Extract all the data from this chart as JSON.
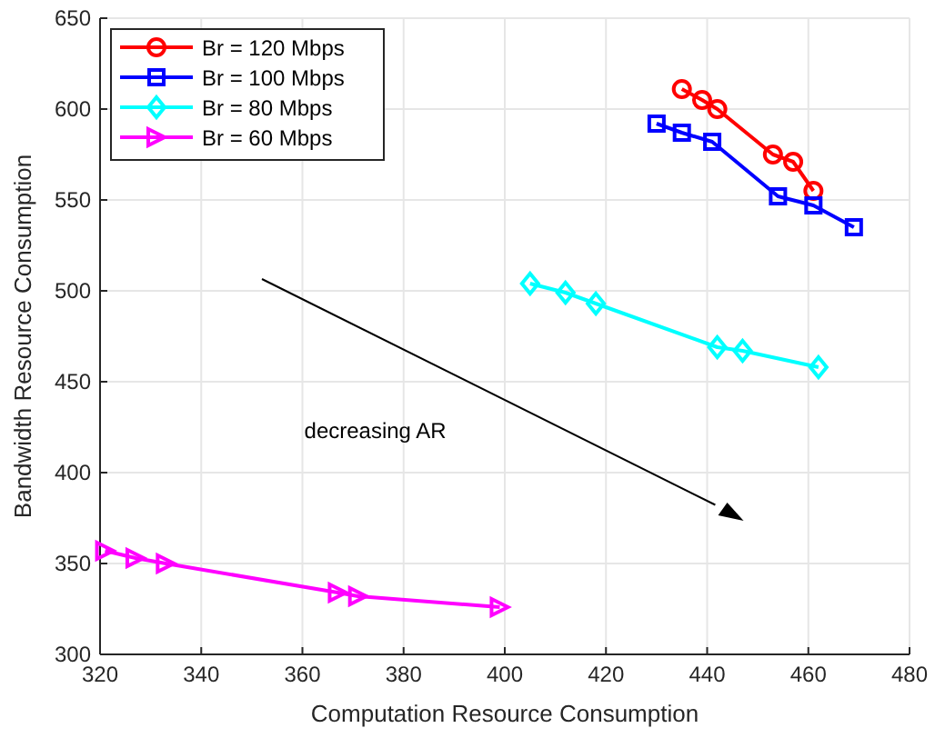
{
  "chart_data": {
    "type": "line",
    "xlabel": "Computation Resource Consumption",
    "ylabel": "Bandwidth Resource Consumption",
    "xlim": [
      320,
      480
    ],
    "xticks": [
      320,
      340,
      360,
      380,
      400,
      420,
      440,
      460,
      480
    ],
    "ylim": [
      300,
      650
    ],
    "yticks": [
      300,
      350,
      400,
      450,
      500,
      550,
      600,
      650
    ],
    "grid": true,
    "legend": "top left",
    "annotations": [
      "decreasing AR"
    ],
    "series": [
      {
        "name": "Br = 120 Mbps",
        "color": "#ff0000",
        "marker": "circle",
        "x": [
          435,
          439,
          442,
          453,
          457,
          461
        ],
        "values": [
          611,
          605,
          600,
          575,
          571,
          555
        ]
      },
      {
        "name": "Br = 100 Mbps",
        "color": "#0000ff",
        "marker": "square",
        "x": [
          430,
          435,
          441,
          454,
          461,
          469
        ],
        "values": [
          592,
          587,
          582,
          552,
          547,
          535
        ]
      },
      {
        "name": "Br = 80 Mbps",
        "color": "#00ffff",
        "marker": "diamond",
        "x": [
          405,
          412,
          418,
          442,
          447,
          462
        ],
        "values": [
          504,
          499,
          493,
          469,
          467,
          458
        ]
      },
      {
        "name": "Br = 60 Mbps",
        "color": "#ff00ff",
        "marker": "triangle",
        "x": [
          321,
          327,
          333,
          367,
          371,
          399
        ],
        "values": [
          357,
          353,
          350,
          334,
          332,
          326
        ]
      }
    ]
  }
}
